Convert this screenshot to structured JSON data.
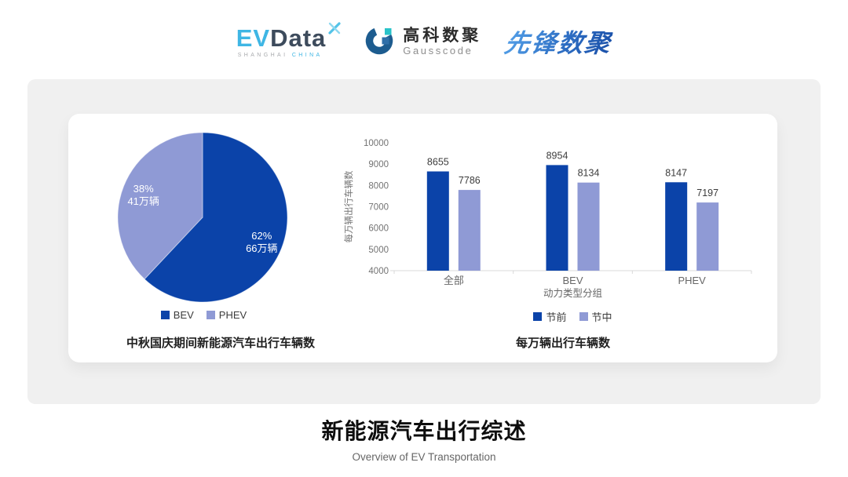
{
  "header": {
    "evdata": {
      "part1": "EV",
      "part2": "Data",
      "sub_left": "SHANGHAI",
      "sub_right": "CHINA"
    },
    "gausscode": {
      "name_cn": "高科数聚",
      "name_en": "Gausscode"
    },
    "xianfeng": {
      "name": "先锋数聚"
    }
  },
  "colors": {
    "primary_blue": "#0B43A9",
    "light_periwinkle": "#8F9AD5",
    "panel_gray": "#F0F0F0",
    "axis_gray": "#737373"
  },
  "chart_data": [
    {
      "type": "pie",
      "title": "中秋国庆期间新能源汽车出行车辆数",
      "labels": [
        "BEV",
        "PHEV"
      ],
      "values": [
        62,
        38
      ],
      "slice_labels": [
        [
          "62%",
          "66万辆"
        ],
        [
          "38%",
          "41万辆"
        ]
      ],
      "colors": [
        "#0B43A9",
        "#8F9AD5"
      ],
      "legend_position": "bottom",
      "start_angle_deg": 0,
      "direction": "clockwise"
    },
    {
      "type": "bar",
      "title": "每万辆出行车辆数",
      "categories": [
        "全部",
        "BEV",
        "PHEV"
      ],
      "series": [
        {
          "name": "节前",
          "values": [
            8655,
            8954,
            8147
          ],
          "color": "#0B43A9"
        },
        {
          "name": "节中",
          "values": [
            7786,
            8134,
            7197
          ],
          "color": "#8F9AD5"
        }
      ],
      "xlabel": "动力类型分组",
      "ylabel": "每万辆出行车辆数",
      "ylim": [
        4000,
        10000
      ],
      "ytick_step": 1000,
      "yticks": [
        4000,
        5000,
        6000,
        7000,
        8000,
        9000,
        10000
      ],
      "grid": false,
      "legend_position": "bottom"
    }
  ],
  "footer": {
    "title": "新能源汽车出行综述",
    "subtitle": "Overview of EV Transportation"
  }
}
